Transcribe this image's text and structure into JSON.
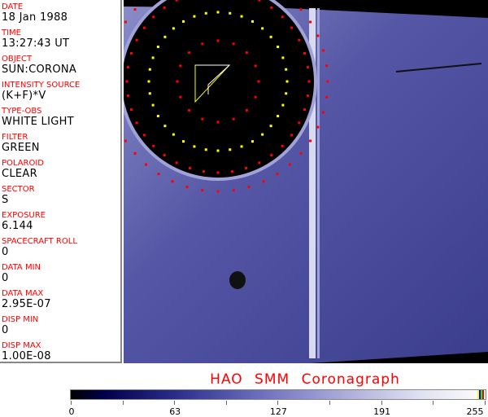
{
  "fields": [
    {
      "label": "DATE",
      "value": "18 Jan 1988"
    },
    {
      "label": "TIME",
      "value": "13:27:43 UT"
    },
    {
      "label": "OBJECT",
      "value": "SUN:CORONA"
    },
    {
      "label": "INTENSITY SOURCE",
      "value": "(K+F)*V"
    },
    {
      "label": "TYPE-OBS",
      "value": "WHITE LIGHT"
    },
    {
      "label": "FILTER",
      "value": "GREEN"
    },
    {
      "label": "POLAROID",
      "value": "CLEAR"
    },
    {
      "label": "SECTOR",
      "value": "S"
    },
    {
      "label": "EXPOSURE",
      "value": "6.144"
    },
    {
      "label": "SPACECRAFT ROLL",
      "value": "0"
    },
    {
      "label": "DATA MIN",
      "value": "0"
    },
    {
      "label": "DATA MAX",
      "value": "2.95E-07"
    },
    {
      "label": "DISP MIN",
      "value": "0"
    },
    {
      "label": "DISP MAX",
      "value": "1.00E-08"
    }
  ],
  "title": "HAO  SMM Coronagraph",
  "colorbar": {
    "ticks": [
      "0",
      "63",
      "127",
      "191",
      "255"
    ],
    "min": 0,
    "max": 255,
    "end_colors": [
      "#ffff00",
      "#0000ff",
      "#00ff00",
      "#ff0000"
    ]
  },
  "colors": {
    "label": "#ff0000",
    "marker_red": "#ff0000",
    "marker_yellow": "#ffff00"
  }
}
